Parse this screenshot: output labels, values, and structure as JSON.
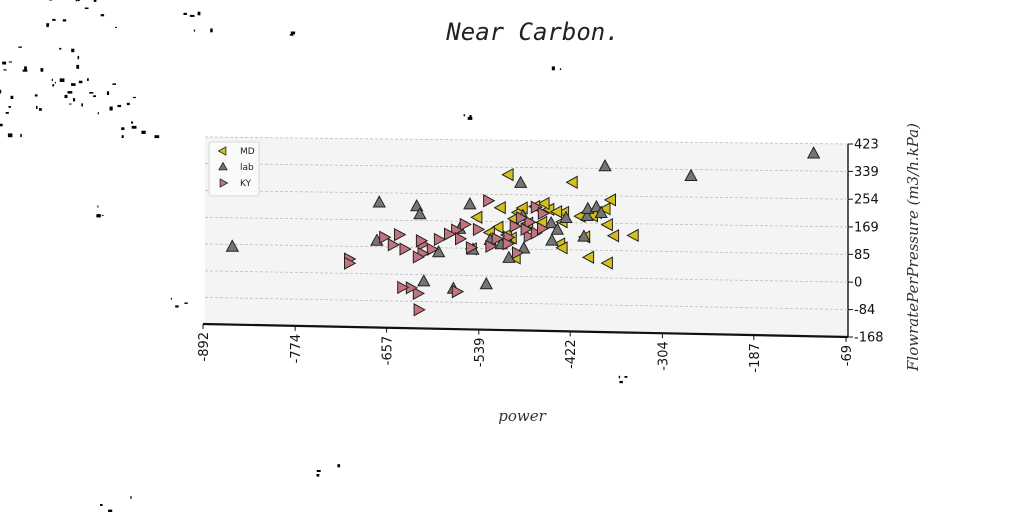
{
  "chart_data": {
    "type": "scatter",
    "title": "Near Carbon.",
    "xlabel": "power",
    "ylabel": "FlowratePerPressure (m3/h.kPa)",
    "x_ticks": [
      "-892",
      "-774",
      "-657",
      "-539",
      "-422",
      "-304",
      "-187",
      "-69"
    ],
    "y_ticks": [
      "423",
      "339",
      "254",
      "169",
      "85",
      "0",
      "-84",
      "-168"
    ],
    "xlim": [
      -892,
      -69
    ],
    "ylim": [
      -168,
      423
    ],
    "grid": "horizontal dashed",
    "legend": "top-left",
    "series": [
      {
        "name": "MD",
        "marker": "triangle-left",
        "color": "#d4c01c",
        "points": [
          [
            -503,
            316
          ],
          [
            -421,
            295
          ],
          [
            -372,
            242
          ],
          [
            -432,
            201
          ],
          [
            -451,
            210
          ],
          [
            -491,
            199
          ],
          [
            -441,
            203
          ],
          [
            -457,
            228
          ],
          [
            -469,
            218
          ],
          [
            -485,
            213
          ],
          [
            -513,
            213
          ],
          [
            -390,
            202
          ],
          [
            -379,
            214
          ],
          [
            -395,
            192
          ],
          [
            -411,
            190
          ],
          [
            -434,
            172
          ],
          [
            -460,
            169
          ],
          [
            -478,
            166
          ],
          [
            -496,
            179
          ],
          [
            -516,
            152
          ],
          [
            -527,
            135
          ],
          [
            -543,
            182
          ],
          [
            -499,
            119
          ],
          [
            -505,
            128
          ],
          [
            -405,
            126
          ],
          [
            -376,
            165
          ],
          [
            -368,
            131
          ],
          [
            -343,
            133
          ],
          [
            -437,
            103
          ],
          [
            -434,
            91
          ],
          [
            -494,
            57
          ],
          [
            -400,
            63
          ],
          [
            -376,
            46
          ],
          [
            -550,
            83
          ]
        ]
      },
      {
        "name": "lab",
        "marker": "triangle-up",
        "color": "#757575",
        "points": [
          [
            -113,
            392
          ],
          [
            -270,
            318
          ],
          [
            -380,
            345
          ],
          [
            -488,
            290
          ],
          [
            -669,
            223
          ],
          [
            -621,
            213
          ],
          [
            -617,
            188
          ],
          [
            -553,
            221
          ],
          [
            -485,
            188
          ],
          [
            -449,
            166
          ],
          [
            -430,
            183
          ],
          [
            -403,
            190
          ],
          [
            -402,
            212
          ],
          [
            -391,
            218
          ],
          [
            -385,
            200
          ],
          [
            -441,
            146
          ],
          [
            -448,
            112
          ],
          [
            -407,
            126
          ],
          [
            -513,
            98
          ],
          [
            -527,
            111
          ],
          [
            -503,
            56
          ],
          [
            -484,
            86
          ],
          [
            -549,
            80
          ],
          [
            -566,
            144
          ],
          [
            -593,
            70
          ],
          [
            -672,
            103
          ],
          [
            -857,
            77
          ],
          [
            -532,
            -27
          ],
          [
            -612,
            -22
          ],
          [
            -574,
            -43
          ]
        ]
      },
      {
        "name": "KY",
        "marker": "triangle-right",
        "color": "#c2747e",
        "points": [
          [
            -530,
            234
          ],
          [
            -469,
            216
          ],
          [
            -460,
            197
          ],
          [
            -477,
            169
          ],
          [
            -488,
            182
          ],
          [
            -496,
            156
          ],
          [
            -504,
            121
          ],
          [
            -519,
            116
          ],
          [
            -543,
            144
          ],
          [
            -560,
            159
          ],
          [
            -571,
            141
          ],
          [
            -580,
            128
          ],
          [
            -593,
            111
          ],
          [
            -614,
            95
          ],
          [
            -616,
            106
          ],
          [
            -602,
            80
          ],
          [
            -614,
            66
          ],
          [
            -620,
            55
          ],
          [
            -644,
            124
          ],
          [
            -663,
            115
          ],
          [
            -652,
            92
          ],
          [
            -637,
            79
          ],
          [
            -566,
            114
          ],
          [
            -552,
            87
          ],
          [
            -527,
            92
          ],
          [
            -505,
            101
          ],
          [
            -493,
            73
          ],
          [
            -478,
            125
          ],
          [
            -469,
            136
          ],
          [
            -482,
            147
          ],
          [
            -461,
            150
          ],
          [
            -708,
            45
          ],
          [
            -708,
            32
          ],
          [
            -620,
            -59
          ],
          [
            -629,
            -42
          ],
          [
            -640,
            -41
          ],
          [
            -619,
            -110
          ],
          [
            -570,
            -51
          ]
        ]
      }
    ]
  }
}
